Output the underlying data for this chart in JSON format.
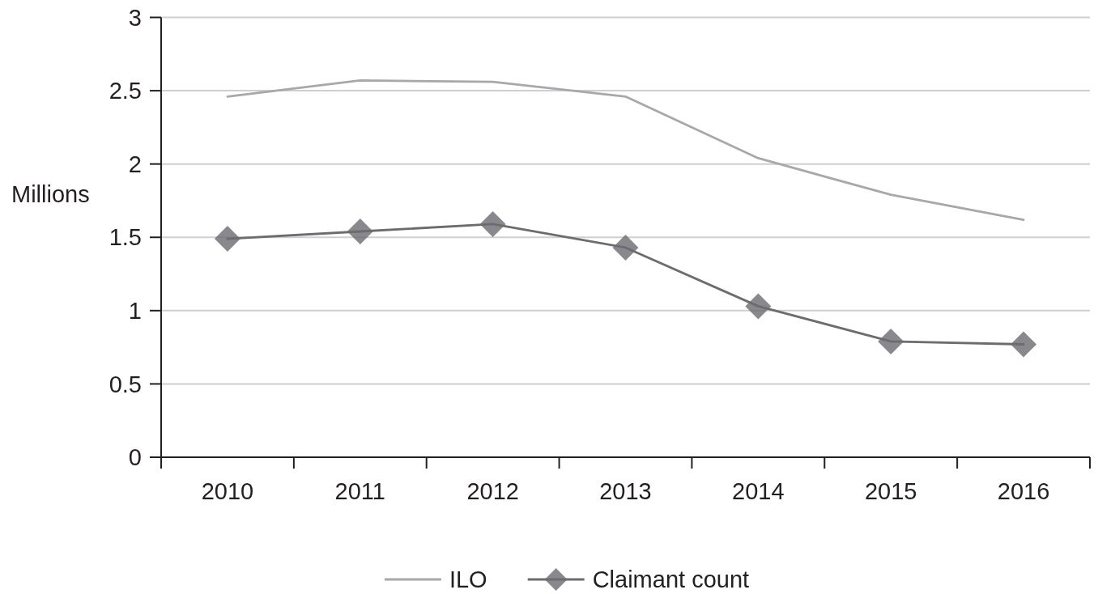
{
  "chart_data": {
    "type": "line",
    "ylabel": "Millions",
    "categories": [
      "2010",
      "2011",
      "2012",
      "2013",
      "2014",
      "2015",
      "2016"
    ],
    "series": [
      {
        "name": "ILO",
        "color": "#a7a8ab",
        "marker": "none",
        "values": [
          2.46,
          2.57,
          2.56,
          2.46,
          2.04,
          1.79,
          1.62
        ]
      },
      {
        "name": "Claimant count",
        "color": "#6b6c70",
        "marker": "diamond",
        "values": [
          1.49,
          1.54,
          1.59,
          1.43,
          1.03,
          0.79,
          0.77
        ]
      }
    ],
    "ylim": [
      0,
      3
    ],
    "yticks": [
      0,
      0.5,
      1,
      1.5,
      2,
      2.5,
      3
    ],
    "grid": "y",
    "legend": "bottom"
  }
}
